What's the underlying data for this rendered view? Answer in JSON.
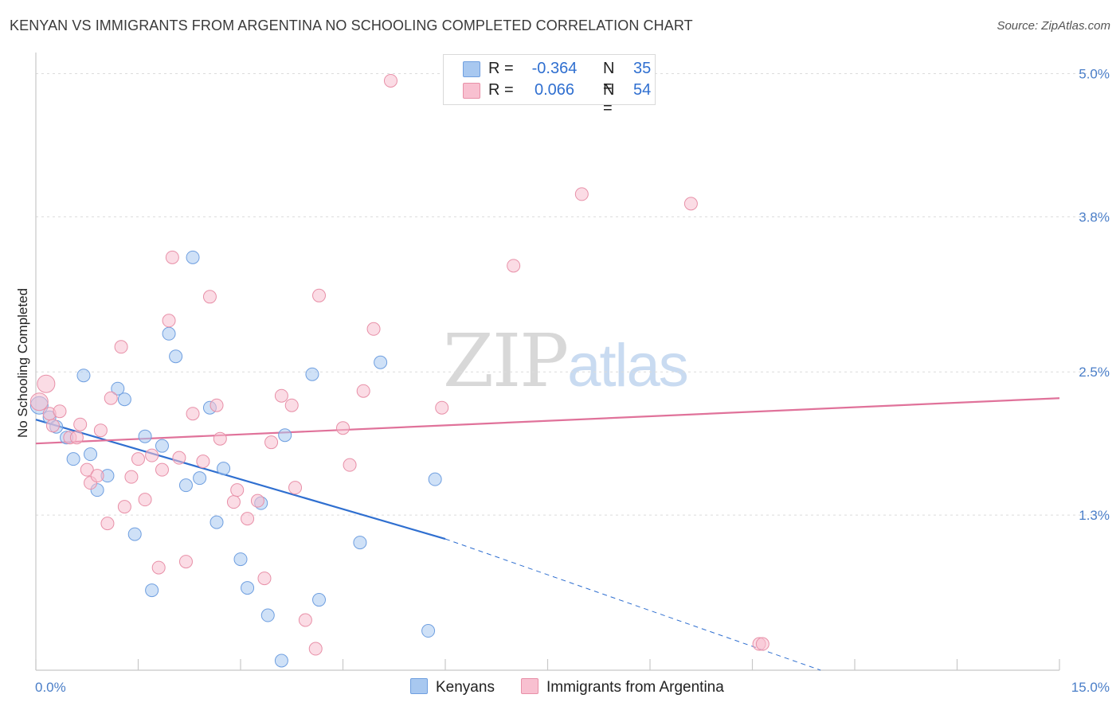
{
  "title": "KENYAN VS IMMIGRANTS FROM ARGENTINA NO SCHOOLING COMPLETED CORRELATION CHART",
  "source": "Source: ZipAtlas.com",
  "watermark": {
    "zip": "ZIP",
    "atlas": "atlas"
  },
  "legend_top": [
    {
      "r_label": "R =",
      "r_value": "-0.364",
      "n_label": "N =",
      "n_value": "35",
      "color": "#a8c8f0",
      "border": "#6f9fe0"
    },
    {
      "r_label": "R =",
      "r_value": "0.066",
      "n_label": "N =",
      "n_value": "54",
      "color": "#f8c0d0",
      "border": "#e890a8"
    }
  ],
  "legend_bottom": [
    {
      "label": "Kenyans",
      "color": "#a8c8f0",
      "border": "#6f9fe0"
    },
    {
      "label": "Immigrants from Argentina",
      "color": "#f8c0d0",
      "border": "#e890a8"
    }
  ],
  "chart_data": {
    "type": "scatter",
    "title": "KENYAN VS IMMIGRANTS FROM ARGENTINA NO SCHOOLING COMPLETED CORRELATION CHART",
    "xlabel": "",
    "ylabel": "No Schooling Completed",
    "xlim": [
      0,
      15
    ],
    "ylim": [
      0,
      5.15
    ],
    "x_tick_labels": [
      "0.0%",
      "15.0%"
    ],
    "y_ticks": [
      {
        "value": 5.0,
        "label": "5.0%"
      },
      {
        "value": 3.8,
        "label": "3.8%"
      },
      {
        "value": 2.5,
        "label": "2.5%"
      },
      {
        "value": 1.3,
        "label": "1.3%"
      }
    ],
    "grid": "horizontal dashed",
    "series": [
      {
        "name": "Kenyans",
        "color": "#a8c8f0",
        "edge": "#6f9fe0",
        "points": [
          [
            0.05,
            2.22
          ],
          [
            0.2,
            2.12
          ],
          [
            0.3,
            2.04
          ],
          [
            0.45,
            1.95
          ],
          [
            0.55,
            1.77
          ],
          [
            0.7,
            2.47
          ],
          [
            0.8,
            1.81
          ],
          [
            0.9,
            1.51
          ],
          [
            1.05,
            1.63
          ],
          [
            1.2,
            2.36
          ],
          [
            1.3,
            2.27
          ],
          [
            1.45,
            1.14
          ],
          [
            1.6,
            1.96
          ],
          [
            1.7,
            0.67
          ],
          [
            1.85,
            1.88
          ],
          [
            1.95,
            2.82
          ],
          [
            2.05,
            2.63
          ],
          [
            2.2,
            1.55
          ],
          [
            2.3,
            3.46
          ],
          [
            2.4,
            1.61
          ],
          [
            2.55,
            2.2
          ],
          [
            2.65,
            1.24
          ],
          [
            2.75,
            1.69
          ],
          [
            3.0,
            0.93
          ],
          [
            3.1,
            0.69
          ],
          [
            3.3,
            1.4
          ],
          [
            3.4,
            0.46
          ],
          [
            3.6,
            0.08
          ],
          [
            3.65,
            1.97
          ],
          [
            4.05,
            2.48
          ],
          [
            4.15,
            0.59
          ],
          [
            4.75,
            1.07
          ],
          [
            5.05,
            2.58
          ],
          [
            5.75,
            0.33
          ],
          [
            5.85,
            1.6
          ]
        ]
      },
      {
        "name": "Immigrants from Argentina",
        "color": "#f8c0d0",
        "edge": "#e890a8",
        "points": [
          [
            0.05,
            2.25
          ],
          [
            0.15,
            2.4
          ],
          [
            0.2,
            2.15
          ],
          [
            0.25,
            2.05
          ],
          [
            0.35,
            2.17
          ],
          [
            0.5,
            1.95
          ],
          [
            0.6,
            1.95
          ],
          [
            0.65,
            2.06
          ],
          [
            0.75,
            1.68
          ],
          [
            0.8,
            1.57
          ],
          [
            0.9,
            1.63
          ],
          [
            0.95,
            2.01
          ],
          [
            1.05,
            1.23
          ],
          [
            1.1,
            2.28
          ],
          [
            1.25,
            2.71
          ],
          [
            1.3,
            1.37
          ],
          [
            1.4,
            1.62
          ],
          [
            1.5,
            1.77
          ],
          [
            1.6,
            1.43
          ],
          [
            1.7,
            1.8
          ],
          [
            1.8,
            0.86
          ],
          [
            1.85,
            1.68
          ],
          [
            1.95,
            2.93
          ],
          [
            2.0,
            3.46
          ],
          [
            2.1,
            1.78
          ],
          [
            2.2,
            0.91
          ],
          [
            2.3,
            2.15
          ],
          [
            2.45,
            1.75
          ],
          [
            2.55,
            3.13
          ],
          [
            2.65,
            2.22
          ],
          [
            2.7,
            1.94
          ],
          [
            2.9,
            1.41
          ],
          [
            2.95,
            1.51
          ],
          [
            3.1,
            1.27
          ],
          [
            3.25,
            1.42
          ],
          [
            3.35,
            0.77
          ],
          [
            3.45,
            1.91
          ],
          [
            3.6,
            2.3
          ],
          [
            3.75,
            2.22
          ],
          [
            3.8,
            1.53
          ],
          [
            3.95,
            0.42
          ],
          [
            4.1,
            0.18
          ],
          [
            4.15,
            3.14
          ],
          [
            4.5,
            2.03
          ],
          [
            4.6,
            1.72
          ],
          [
            4.8,
            2.34
          ],
          [
            4.95,
            2.86
          ],
          [
            5.2,
            4.94
          ],
          [
            5.95,
            2.2
          ],
          [
            7.0,
            3.39
          ],
          [
            8.0,
            3.99
          ],
          [
            9.6,
            3.91
          ],
          [
            10.6,
            0.22
          ],
          [
            10.65,
            0.22
          ]
        ]
      }
    ],
    "trend_lines": [
      {
        "series": "Kenyans",
        "x": [
          0,
          6.0
        ],
        "y": [
          2.1,
          1.1
        ],
        "style": "solid",
        "color": "#2f6fd0",
        "extension": {
          "x": [
            6.0,
            11.5
          ],
          "y": [
            1.1,
            0.0
          ],
          "style": "dashed"
        }
      },
      {
        "series": "Immigrants from Argentina",
        "x": [
          0,
          15
        ],
        "y": [
          1.9,
          2.28
        ],
        "style": "solid",
        "color": "#e0729a"
      }
    ]
  }
}
